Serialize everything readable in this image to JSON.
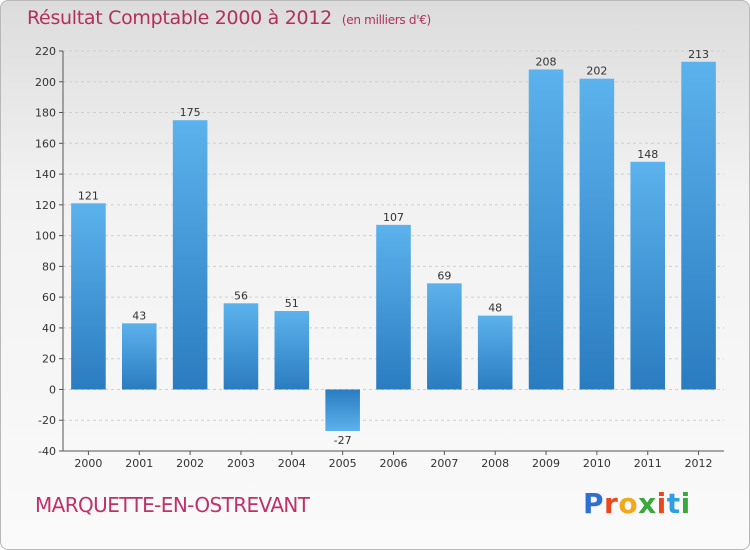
{
  "header": {
    "title": "Résultat Comptable 2000 à 2012",
    "subtitle": "(en milliers d'€)"
  },
  "footer": {
    "city": "MARQUETTE-EN-OSTREVANT",
    "logo_letters": [
      "P",
      "r",
      "o",
      "x",
      "i",
      "t",
      "i"
    ],
    "logo_colors": [
      "#2e6fd0",
      "#e8481c",
      "#f2a81c",
      "#3aa83a",
      "#e8481c",
      "#2e9fe0",
      "#3aa83a"
    ]
  },
  "chart_data": {
    "type": "bar",
    "title": "Résultat Comptable 2000 à 2012",
    "subtitle": "(en milliers d'€)",
    "categories": [
      "2000",
      "2001",
      "2002",
      "2003",
      "2004",
      "2005",
      "2006",
      "2007",
      "2008",
      "2009",
      "2010",
      "2011",
      "2012"
    ],
    "values": [
      121,
      43,
      175,
      56,
      51,
      -27,
      107,
      69,
      48,
      208,
      202,
      148,
      213
    ],
    "ylim": [
      -40,
      220
    ],
    "yticks": [
      -40,
      -20,
      0,
      20,
      40,
      60,
      80,
      100,
      120,
      140,
      160,
      180,
      200,
      220
    ],
    "grid": true,
    "bar_color": "#3d96d8"
  }
}
